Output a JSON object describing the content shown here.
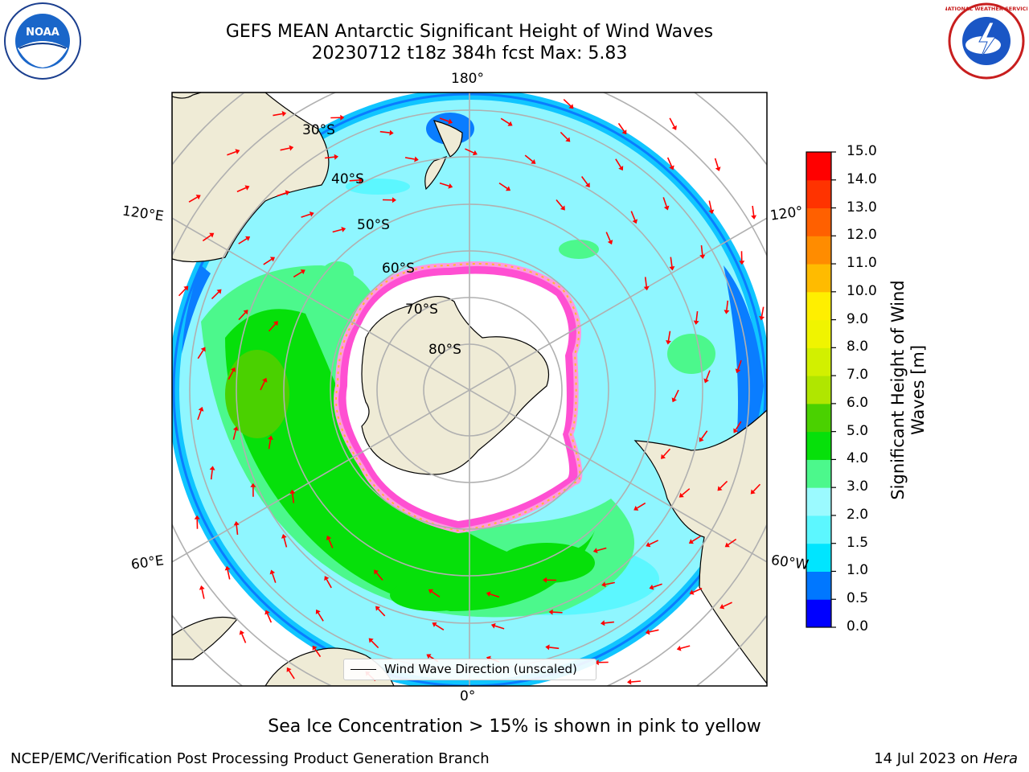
{
  "header": {
    "title_line1": "GEFS MEAN Antarctic Significant Height of Wind Waves",
    "title_line2": "20230712 t18z 384h fcst   Max: 5.83"
  },
  "logos": {
    "left": {
      "name": "noaa-logo",
      "text": "NOAA"
    },
    "right": {
      "name": "nws-logo",
      "text": "NATIONAL WEATHER SERVICE"
    }
  },
  "map": {
    "projection": "south-polar-stereographic",
    "longitude_labels": {
      "top": "180°",
      "bottom": "0°",
      "left_upper": "120°E",
      "left_lower": "60°E",
      "right_upper": "120°",
      "right_lower": "60°W"
    },
    "latitude_labels": [
      "30°S",
      "40°S",
      "50°S",
      "60°S",
      "70°S",
      "80°S"
    ],
    "colors": {
      "land": "#efebd6",
      "ice": "#ffffff",
      "grid": "#b0b0b0",
      "arrows": "#ff0000"
    }
  },
  "legend": {
    "label": "Wind Wave Direction (unscaled)"
  },
  "colorbar": {
    "title_line1": "Significant Height of Wind",
    "title_line2": "Waves [m]",
    "ticks": [
      "0.0",
      "0.5",
      "1.0",
      "1.5",
      "2.0",
      "3.0",
      "4.0",
      "5.0",
      "6.0",
      "7.0",
      "8.0",
      "9.0",
      "10.0",
      "11.0",
      "12.0",
      "13.0",
      "14.0",
      "15.0"
    ],
    "colors": [
      "#0000ff",
      "#0077ff",
      "#00e5ff",
      "#5cf7ff",
      "#9bfaff",
      "#4cf88c",
      "#06e00a",
      "#4ad100",
      "#b0e600",
      "#d2f000",
      "#f0f400",
      "#ffef00",
      "#ffbb00",
      "#ff8c00",
      "#ff6000",
      "#ff3300",
      "#ff0000"
    ]
  },
  "footer": {
    "note": "Sea Ice Concentration > 15% is shown in pink to yellow",
    "left": "NCEP/EMC/Verification Post Processing Product Generation Branch",
    "right_prefix": "14 Jul 2023 on",
    "right_host": "Hera"
  }
}
